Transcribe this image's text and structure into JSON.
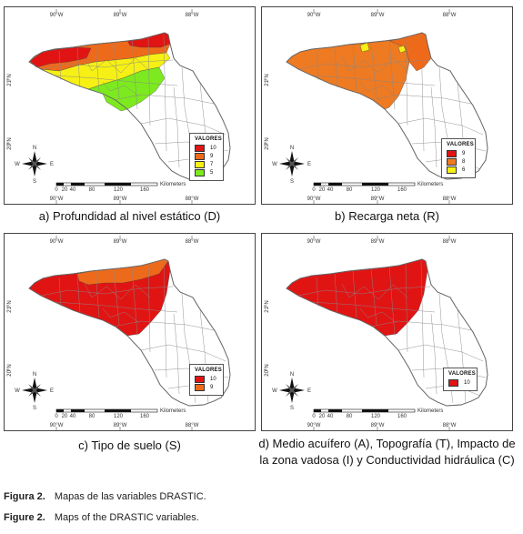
{
  "axis": {
    "lon_top": [
      "90°W",
      "89°W",
      "88°W"
    ],
    "lon_bottom": [
      "90°W",
      "89°W",
      "88°W"
    ],
    "lat": [
      "21°N",
      "20°N"
    ],
    "scalebar": {
      "ticks": [
        "0",
        "20",
        "40",
        "80",
        "120",
        "160"
      ],
      "unit": "Kilometers"
    },
    "north": {
      "n": "N",
      "s": "S",
      "e": "E",
      "w": "W"
    }
  },
  "colors": {
    "v10": "#e11414",
    "v9": "#ee6a1b",
    "v8": "#ee7a22",
    "v7": "#f6f014",
    "v6": "#f6f014",
    "v5": "#7cea1e"
  },
  "panels": [
    {
      "id": "a",
      "caption": "a) Profundidad al nivel estático (D)",
      "legend": {
        "title": "VALORES",
        "items": [
          {
            "label": "10",
            "color": "#e11414"
          },
          {
            "label": "9",
            "color": "#ee6a1b"
          },
          {
            "label": "7",
            "color": "#f6f014"
          },
          {
            "label": "5",
            "color": "#7cea1e"
          }
        ]
      }
    },
    {
      "id": "b",
      "caption": "b) Recarga neta (R)",
      "legend": {
        "title": "VALORES",
        "items": [
          {
            "label": "9",
            "color": "#e11414"
          },
          {
            "label": "8",
            "color": "#ee7a22"
          },
          {
            "label": "6",
            "color": "#f6f014"
          }
        ]
      }
    },
    {
      "id": "c",
      "caption": "c) Tipo de suelo (S)",
      "legend": {
        "title": "VALORES",
        "items": [
          {
            "label": "10",
            "color": "#e11414"
          },
          {
            "label": "9",
            "color": "#ee6a1b"
          }
        ]
      }
    },
    {
      "id": "d",
      "caption_lines": [
        "d) Medio acuífero (A), Topografía (T), Impacto de",
        "la zona vadosa (I) y Conductividad hidráulica (C)"
      ],
      "legend": {
        "title": "VALORES",
        "items": [
          {
            "label": "10",
            "color": "#e11414"
          }
        ]
      }
    }
  ],
  "figure": {
    "es_label": "Figura 2.",
    "es_text": "Mapas de las variables DRASTIC.",
    "en_label": "Figure 2.",
    "en_text": "Maps of the DRASTIC variables."
  }
}
